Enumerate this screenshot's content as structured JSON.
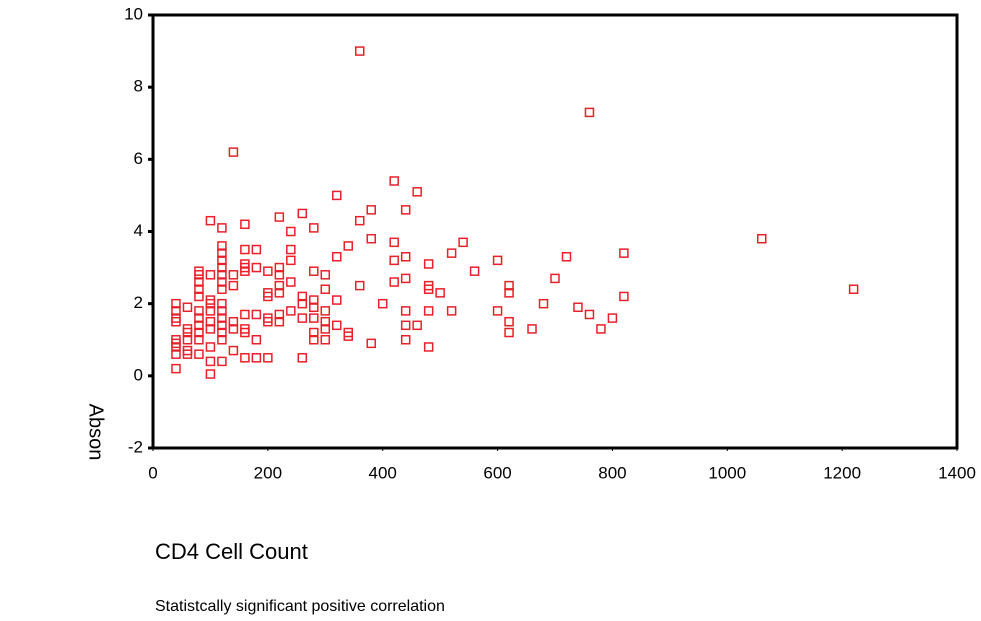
{
  "chart_data": {
    "type": "scatter",
    "x_label": "CD4 Cell Count",
    "y_label": "Abson",
    "annotation": "Statistcally significant positive correlation",
    "color": "#e8202a",
    "xlim": [
      0,
      1400
    ],
    "xticks": [
      0,
      200,
      400,
      600,
      800,
      1000,
      1200,
      1400
    ],
    "ylim": [
      -2,
      10
    ],
    "yticks": [
      -2,
      0,
      2,
      4,
      6,
      8,
      10
    ],
    "x": [
      40,
      40,
      40,
      40,
      40,
      40,
      40,
      40,
      40,
      60,
      60,
      60,
      60,
      60,
      60,
      80,
      80,
      80,
      80,
      80,
      80,
      80,
      80,
      80,
      80,
      80,
      100,
      100,
      100,
      100,
      100,
      100,
      100,
      100,
      100,
      100,
      120,
      120,
      120,
      120,
      120,
      120,
      120,
      120,
      120,
      120,
      120,
      120,
      120,
      120,
      120,
      140,
      140,
      140,
      140,
      140,
      140,
      160,
      160,
      160,
      160,
      160,
      160,
      160,
      160,
      160,
      180,
      180,
      180,
      180,
      180,
      200,
      200,
      200,
      200,
      200,
      200,
      220,
      220,
      220,
      220,
      220,
      220,
      220,
      240,
      240,
      240,
      240,
      240,
      260,
      260,
      260,
      260,
      260,
      280,
      280,
      280,
      280,
      280,
      280,
      280,
      300,
      300,
      300,
      300,
      300,
      300,
      320,
      320,
      320,
      320,
      340,
      340,
      340,
      360,
      360,
      360,
      380,
      380,
      380,
      400,
      420,
      420,
      420,
      420,
      440,
      440,
      440,
      440,
      440,
      440,
      460,
      460,
      480,
      480,
      480,
      480,
      480,
      500,
      520,
      520,
      540,
      560,
      600,
      600,
      620,
      620,
      620,
      620,
      660,
      680,
      700,
      720,
      740,
      760,
      760,
      780,
      800,
      820,
      820,
      1060,
      1220
    ],
    "y": [
      2.0,
      1.8,
      1.6,
      1.5,
      1.0,
      0.9,
      0.8,
      0.6,
      0.2,
      1.9,
      1.3,
      1.2,
      1.0,
      0.7,
      0.6,
      2.9,
      2.8,
      2.6,
      2.4,
      2.2,
      1.8,
      1.6,
      1.4,
      1.2,
      1.0,
      0.6,
      4.3,
      2.8,
      2.1,
      2.0,
      1.8,
      1.5,
      1.3,
      0.8,
      0.4,
      0.05,
      4.1,
      3.6,
      3.4,
      3.2,
      3.0,
      2.8,
      2.6,
      2.4,
      2.0,
      1.8,
      1.6,
      1.4,
      1.2,
      1.0,
      0.4,
      6.2,
      2.8,
      2.5,
      1.5,
      1.3,
      0.7,
      4.2,
      3.5,
      3.1,
      3.0,
      2.9,
      1.7,
      1.3,
      1.2,
      0.5,
      3.5,
      3.0,
      1.7,
      1.0,
      0.5,
      2.9,
      2.3,
      2.2,
      1.6,
      1.5,
      0.5,
      4.4,
      3.0,
      2.8,
      2.5,
      2.3,
      1.7,
      1.5,
      4.0,
      3.5,
      3.2,
      2.6,
      1.8,
      4.5,
      2.2,
      2.0,
      1.6,
      0.5,
      4.1,
      2.9,
      2.1,
      1.9,
      1.6,
      1.2,
      1.0,
      2.8,
      2.4,
      1.8,
      1.5,
      1.3,
      1.0,
      5.0,
      3.3,
      2.1,
      1.4,
      3.6,
      1.2,
      1.1,
      9.0,
      4.3,
      2.5,
      4.6,
      3.8,
      0.9,
      2.0,
      5.4,
      3.7,
      3.2,
      2.6,
      4.6,
      3.3,
      2.7,
      1.8,
      1.4,
      1.0,
      5.1,
      1.4,
      3.1,
      2.5,
      2.4,
      1.8,
      0.8,
      2.3,
      3.4,
      1.8,
      3.7,
      2.9,
      3.2,
      1.8,
      2.5,
      2.3,
      1.5,
      1.2,
      1.3,
      2.0,
      2.7,
      3.3,
      1.9,
      7.3,
      1.7,
      1.3,
      1.6,
      3.4,
      2.2,
      3.8,
      2.4
    ]
  }
}
